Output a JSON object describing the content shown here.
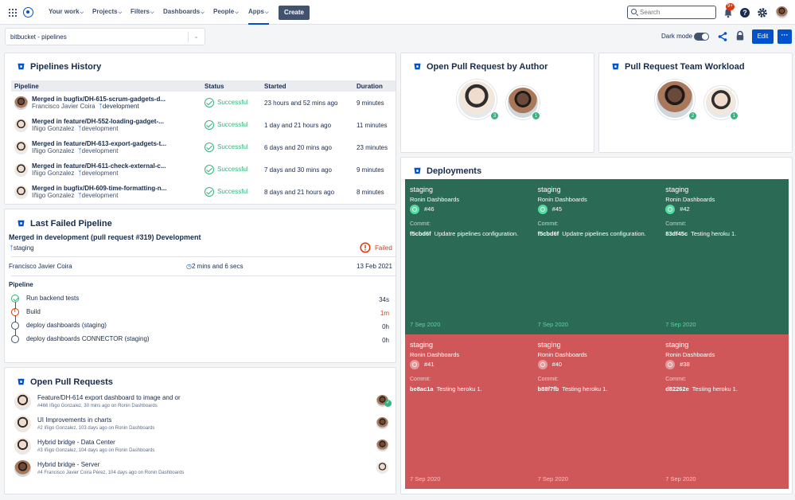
{
  "topnav": {
    "items": [
      "Your work",
      "Projects",
      "Filters",
      "Dashboards",
      "People",
      "Apps"
    ],
    "create_label": "Create",
    "search_placeholder": "Search",
    "notification_badge": "9+",
    "icons": [
      "app-switcher-icon",
      "notifications-icon",
      "help-icon",
      "settings-icon"
    ]
  },
  "subbar": {
    "dashboard_select": "bitbucket - pipelines",
    "dark_mode_label": "Dark mode",
    "edit_label": "Edit",
    "more_label": "···"
  },
  "pipelines_history": {
    "title": "Pipelines History",
    "columns": [
      "Pipeline",
      "Status",
      "Started",
      "Duration"
    ],
    "rows": [
      {
        "name": "Merged in bugfix/DH-615-scrum-gadgets-d...",
        "author": "Francisco Javier Coira",
        "branch": "development",
        "status": "Successful",
        "started": "23 hours and 52 mins ago",
        "duration": "9 minutes"
      },
      {
        "name": "Merged in feature/DH-552-loading-gadget-...",
        "author": "Iñigo Gonzalez",
        "branch": "development",
        "status": "Successful",
        "started": "1 day and 21 hours ago",
        "duration": "11 minutes"
      },
      {
        "name": "Merged in feature/DH-613-export-gadgets-t...",
        "author": "Iñigo Gonzalez",
        "branch": "development",
        "status": "Successful",
        "started": "6 days and 20 mins ago",
        "duration": "23 minutes"
      },
      {
        "name": "Merged in feature/DH-611-check-external-c...",
        "author": "Iñigo Gonzalez",
        "branch": "development",
        "status": "Successful",
        "started": "7 days and 30 mins ago",
        "duration": "9 minutes"
      },
      {
        "name": "Merged in bugfix/DH-609-time-formatting-n...",
        "author": "Iñigo Gonzalez",
        "branch": "development",
        "status": "Successful",
        "started": "8 days and 21 hours ago",
        "duration": "8 minutes"
      }
    ]
  },
  "last_failed": {
    "title": "Last Failed Pipeline",
    "heading": "Merged in development (pull request #319) Development",
    "branch": "staging",
    "status": "Failed",
    "author": "Francisco Javier Coira",
    "duration": "2 mins and 6 secs",
    "date": "13 Feb 2021",
    "section_label": "Pipeline",
    "steps": [
      {
        "name": "Run backend tests",
        "state": "ok",
        "time": "34s"
      },
      {
        "name": "Build",
        "state": "fail",
        "time": "1m"
      },
      {
        "name": "deploy dashboards (staging)",
        "state": "pending",
        "time": "0h"
      },
      {
        "name": "deploy dashboards CONNECTOR (staging)",
        "state": "pending",
        "time": "0h"
      }
    ]
  },
  "open_prs": {
    "title": "Open Pull Requests",
    "items": [
      {
        "title": "Feature/DH-614 export dashboard to image and or",
        "sub": "#466 Iñigo Gonzalez, 30 mins ago on Ronin Dashboards"
      },
      {
        "title": "UI Improvements in charts",
        "sub": "#2 Iñigo Gonzalez, 103 days ago on Ronin Dashboards"
      },
      {
        "title": "Hybrid bridge - Data Center",
        "sub": "#3 Iñigo Gonzalez, 104 days ago on Ronin Dashboards"
      },
      {
        "title": "Hybrid bridge - Server",
        "sub": "#4 Francisco Javier Coira Pérez, 104 days ago on Ronin Dashboards"
      }
    ]
  },
  "pr_by_author": {
    "title": "Open Pull Request by Author",
    "counts": [
      "3",
      "1"
    ]
  },
  "pr_workload": {
    "title": "Pull Request Team Workload",
    "counts": [
      "2",
      "1"
    ]
  },
  "deployments": {
    "title": "Deployments",
    "label_commit": "Commit:",
    "items": [
      {
        "env": "staging",
        "repo": "Ronin Dashboards",
        "build": "#46",
        "hash": "f5cbd6f",
        "msg": "Updatre pipelines configuration.",
        "date": "7 Sep 2020",
        "status": "success"
      },
      {
        "env": "staging",
        "repo": "Ronin Dashboards",
        "build": "#45",
        "hash": "f5cbd6f",
        "msg": "Updatre pipelines configuration.",
        "date": "7 Sep 2020",
        "status": "success"
      },
      {
        "env": "staging",
        "repo": "Ronin Dashboards",
        "build": "#42",
        "hash": "83df45c",
        "msg": "Testing heroku 1.",
        "date": "7 Sep 2020",
        "status": "success"
      },
      {
        "env": "staging",
        "repo": "Ronin Dashboards",
        "build": "#41",
        "hash": "be8ac1a",
        "msg": "Testing heroku 1.",
        "date": "7 Sep 2020",
        "status": "failed"
      },
      {
        "env": "staging",
        "repo": "Ronin Dashboards",
        "build": "#40",
        "hash": "b88f7fb",
        "msg": "Testing heroku 1.",
        "date": "7 Sep 2020",
        "status": "failed"
      },
      {
        "env": "staging",
        "repo": "Ronin Dashboards",
        "build": "#38",
        "hash": "d82262e",
        "msg": "Testing heroku 1.",
        "date": "7 Sep 2020",
        "status": "failed"
      }
    ]
  },
  "colors": {
    "brand": "#0052cc",
    "success": "#36b37e",
    "failed": "#de350b",
    "deploy_green": "#2b6a55",
    "deploy_red": "#cf5759"
  }
}
